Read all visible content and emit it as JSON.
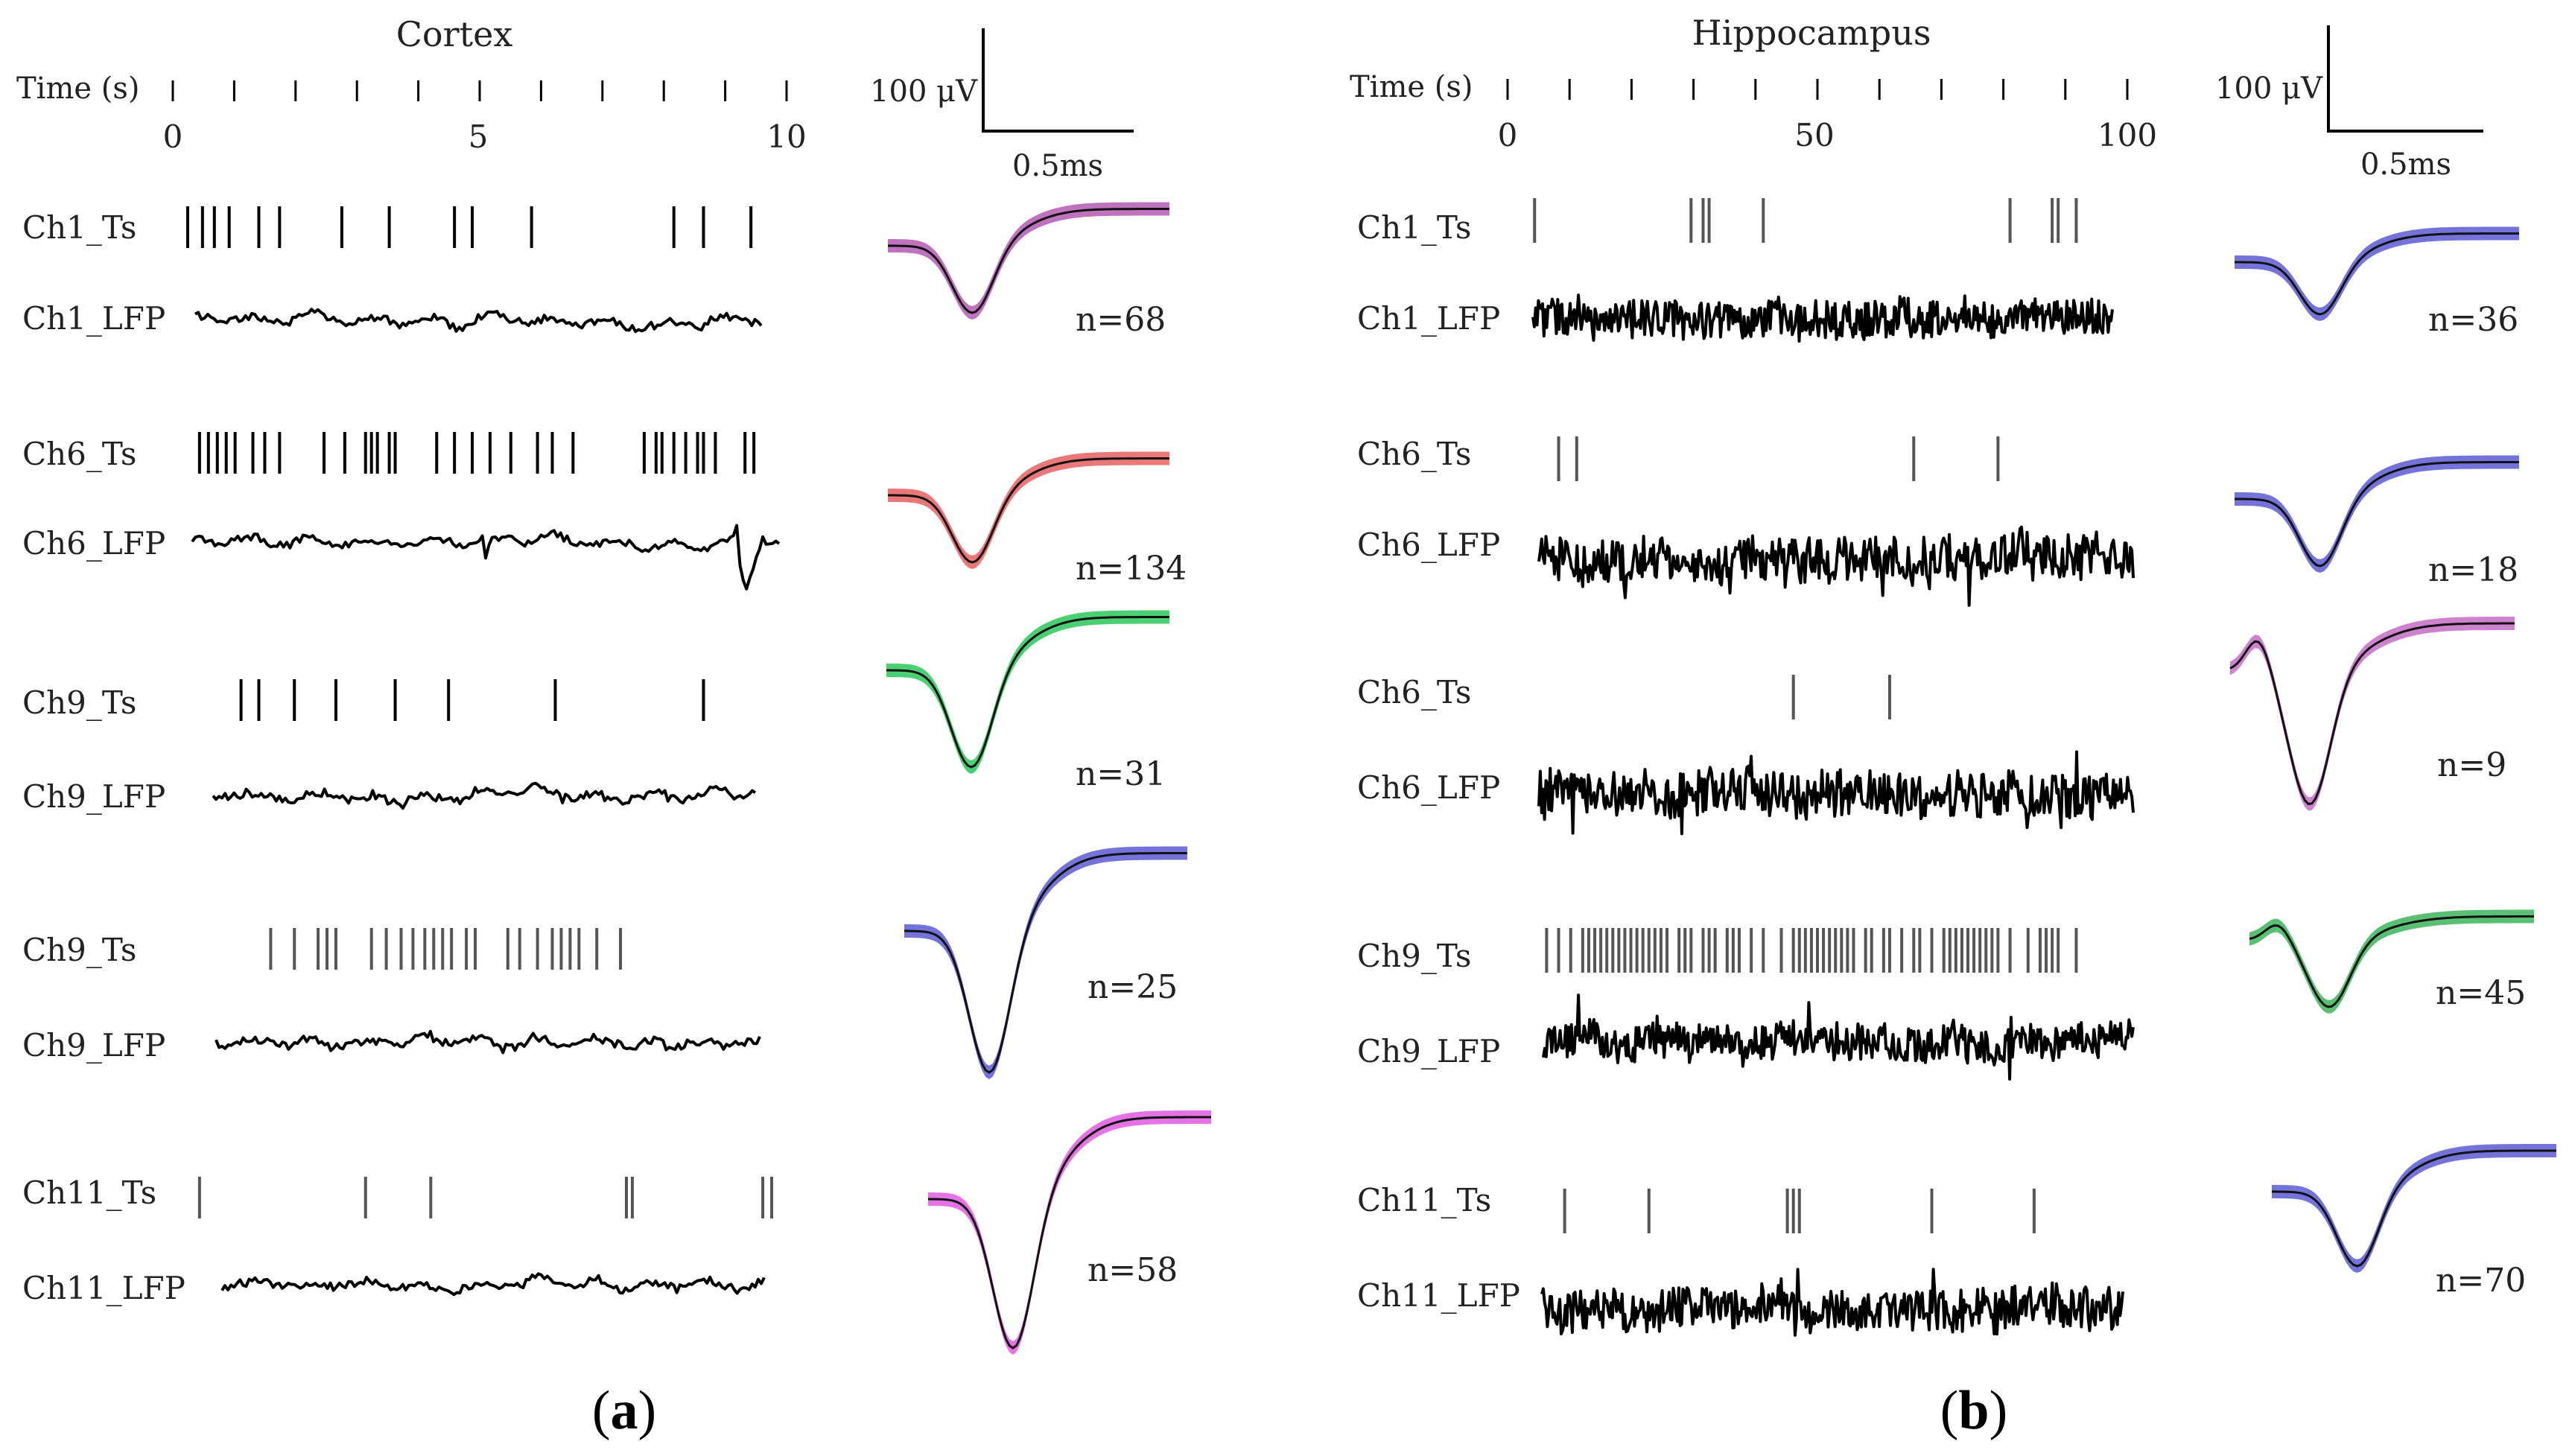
{
  "panels": [
    {
      "id": "a",
      "region": "Cortex",
      "time_axis_label": "Time (s)",
      "ticks": [
        "0",
        "5",
        "10"
      ],
      "scale_voltage": "100 μV",
      "scale_time": "0.5ms",
      "panel_label": "a",
      "rows": [
        {
          "ts_label": "Ch1_Ts",
          "lfp_label": "Ch1_LFP",
          "n": "n=68",
          "color": "#b45ab4",
          "spikes": [
            0.1,
            0.35,
            0.55,
            0.8,
            1.3,
            1.65,
            2.7,
            3.5,
            4.6,
            4.9,
            5.9,
            8.3,
            8.8,
            9.6
          ]
        },
        {
          "ts_label": "Ch6_Ts",
          "lfp_label": "Ch6_LFP",
          "n": "n=134",
          "color": "#e86060",
          "spikes": [
            0.3,
            0.45,
            0.6,
            0.75,
            0.9,
            1.2,
            1.4,
            1.65,
            2.4,
            2.75,
            3.1,
            3.2,
            3.3,
            3.5,
            3.6,
            4.3,
            4.6,
            4.9,
            5.2,
            5.55,
            6.0,
            6.25,
            6.6,
            7.8,
            8.0,
            8.1,
            8.3,
            8.5,
            8.7,
            8.8,
            9.0,
            9.5,
            9.65
          ]
        },
        {
          "ts_label": "Ch9_Ts",
          "lfp_label": "Ch9_LFP",
          "n": "n=31",
          "color": "#2ac85a",
          "spikes": [
            1.0,
            1.3,
            1.9,
            2.6,
            3.6,
            4.5,
            6.3,
            8.8
          ]
        },
        {
          "ts_label": "Ch9_Ts",
          "lfp_label": "Ch9_LFP",
          "n": "n=25",
          "color": "#5a5ad2",
          "spikes": [
            1.5,
            1.9,
            2.3,
            2.45,
            2.6,
            3.2,
            3.45,
            3.7,
            3.9,
            4.1,
            4.25,
            4.4,
            4.55,
            4.8,
            4.95,
            5.5,
            5.7,
            6.0,
            6.25,
            6.4,
            6.55,
            6.7,
            7.0,
            7.4
          ]
        },
        {
          "ts_label": "Ch11_Ts",
          "lfp_label": "Ch11_LFP",
          "n": "n=58",
          "color": "#e05ae0",
          "spikes": [
            0.3,
            3.1,
            4.2,
            7.5,
            7.6,
            9.8,
            9.95
          ]
        }
      ]
    },
    {
      "id": "b",
      "region": "Hippocampus",
      "time_axis_label": "Time (s)",
      "ticks": [
        "0",
        "50",
        "100"
      ],
      "scale_voltage": "100 μV",
      "scale_time": "0.5ms",
      "panel_label": "b",
      "rows": [
        {
          "ts_label": "Ch1_Ts",
          "lfp_label": "Ch1_LFP",
          "n": "n=36",
          "color": "#5a5ad2",
          "spikes": [
            3,
            29,
            31,
            32,
            41,
            82,
            89,
            90,
            93
          ]
        },
        {
          "ts_label": "Ch6_Ts",
          "lfp_label": "Ch6_LFP",
          "n": "n=18",
          "color": "#5a5ad2",
          "spikes": [
            7,
            10,
            66,
            80
          ]
        },
        {
          "ts_label": "Ch6_Ts",
          "lfp_label": "Ch6_LFP",
          "n": "n=9",
          "color": "#c46cc4",
          "spikes": [
            46,
            62
          ]
        },
        {
          "ts_label": "Ch9_Ts",
          "lfp_label": "Ch9_LFP",
          "n": "n=45",
          "color": "#3cb45a",
          "spikes": [
            5,
            7,
            9,
            11,
            12,
            13,
            14,
            15,
            16,
            17,
            18,
            19,
            20,
            21,
            22,
            23,
            24,
            25,
            27,
            28,
            29,
            31,
            32,
            33,
            35,
            36,
            37,
            39,
            41,
            44,
            46,
            47,
            48,
            49,
            50,
            51,
            52,
            53,
            54,
            55,
            56,
            58,
            59,
            61,
            62,
            64,
            66,
            67,
            69,
            71,
            72,
            73,
            74,
            75,
            76,
            77,
            78,
            79,
            80,
            82,
            85,
            87,
            88,
            89,
            90,
            93
          ]
        },
        {
          "ts_label": "Ch11_Ts",
          "lfp_label": "Ch11_LFP",
          "n": "n=70",
          "color": "#5a5ad2",
          "spikes": [
            8,
            22,
            45,
            46,
            47,
            69,
            86
          ]
        }
      ]
    }
  ]
}
